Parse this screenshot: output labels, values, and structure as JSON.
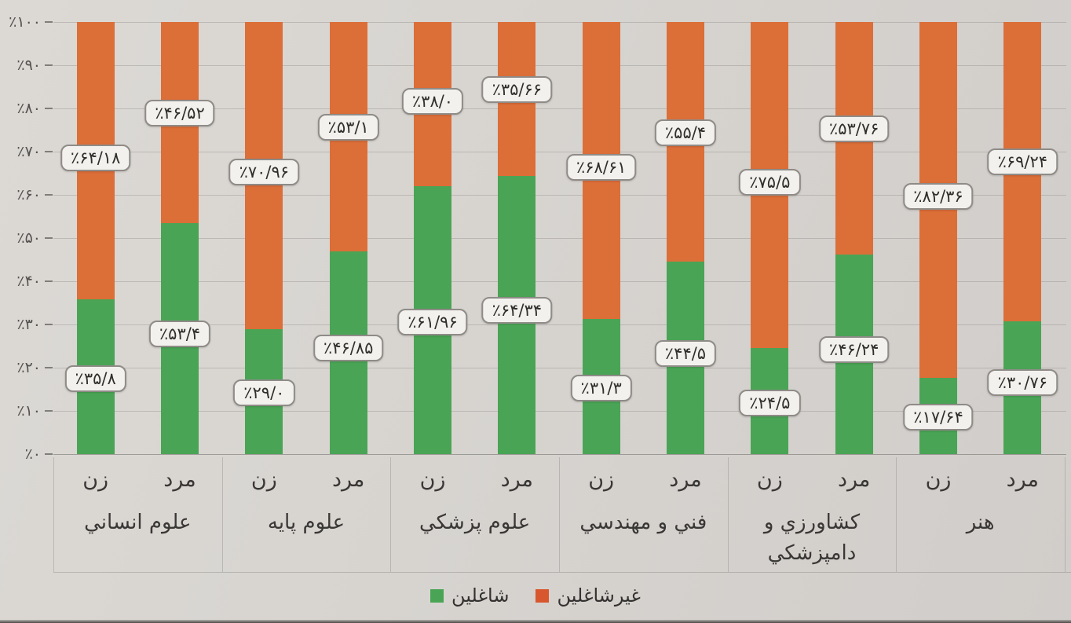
{
  "chart_data": {
    "type": "bar",
    "variant": "stacked-percent",
    "orientation": "vertical",
    "ylim": [
      0,
      100
    ],
    "grid": "horizontal",
    "y_ticks": [
      0,
      10,
      20,
      30,
      40,
      50,
      60,
      70,
      80,
      90,
      100
    ],
    "y_tick_labels": [
      "٪۰",
      "٪۱۰",
      "٪۲۰",
      "٪۳۰",
      "٪۴۰",
      "٪۵۰",
      "٪۶۰",
      "٪۷۰",
      "٪۸۰",
      "٪۹۰",
      "٪۱۰۰"
    ],
    "legend_position": "bottom",
    "legend": [
      {
        "name": "شاغلين",
        "color": "#4aa455"
      },
      {
        "name": "غيرشاغلين",
        "color": "#d8572f"
      }
    ],
    "series_colors": {
      "employed": "#4aa455",
      "unemployed": "#dc6e38"
    },
    "groups": [
      {
        "category": "علوم انساني",
        "display": "علوم انساني",
        "bars": [
          {
            "sub": "زن",
            "employed": 35.8,
            "employed_label": "٪۳۵/۸",
            "unemployed": 64.18,
            "unemployed_label": "٪۶۴/۱۸"
          },
          {
            "sub": "مرد",
            "employed": 53.4,
            "employed_label": "٪۵۳/۴",
            "unemployed": 46.52,
            "unemployed_label": "٪۴۶/۵۲"
          }
        ]
      },
      {
        "category": "علوم پايه",
        "display": "علوم پايه",
        "bars": [
          {
            "sub": "زن",
            "employed": 29.0,
            "employed_label": "٪۲۹/۰",
            "unemployed": 70.96,
            "unemployed_label": "٪۷۰/۹۶"
          },
          {
            "sub": "مرد",
            "employed": 46.85,
            "employed_label": "٪۴۶/۸۵",
            "unemployed": 53.1,
            "unemployed_label": "٪۵۳/۱"
          }
        ]
      },
      {
        "category": "علوم پزشكي",
        "display": "علوم پزشكي",
        "bars": [
          {
            "sub": "زن",
            "employed": 61.96,
            "employed_label": "٪۶۱/۹۶",
            "unemployed": 38.0,
            "unemployed_label": "٪۳۸/۰"
          },
          {
            "sub": "مرد",
            "employed": 64.34,
            "employed_label": "٪۶۴/۳۴",
            "unemployed": 35.66,
            "unemployed_label": "٪۳۵/۶۶"
          }
        ]
      },
      {
        "category": "فني و مهندسي",
        "display": "فني و مهندسي",
        "bars": [
          {
            "sub": "زن",
            "employed": 31.3,
            "employed_label": "٪۳۱/۳",
            "unemployed": 68.61,
            "unemployed_label": "٪۶۸/۶۱"
          },
          {
            "sub": "مرد",
            "employed": 44.5,
            "employed_label": "٪۴۴/۵",
            "unemployed": 55.4,
            "unemployed_label": "٪۵۵/۴"
          }
        ]
      },
      {
        "category": "كشاورزي و دامپزشكي",
        "display": "كشاورزي و\nدامپزشكي",
        "bars": [
          {
            "sub": "زن",
            "employed": 24.5,
            "employed_label": "٪۲۴/۵",
            "unemployed": 75.5,
            "unemployed_label": "٪۷۵/۵"
          },
          {
            "sub": "مرد",
            "employed": 46.24,
            "employed_label": "٪۴۶/۲۴",
            "unemployed": 53.76,
            "unemployed_label": "٪۵۳/۷۶"
          }
        ]
      },
      {
        "category": "هنر",
        "display": "هنر",
        "bars": [
          {
            "sub": "زن",
            "employed": 17.64,
            "employed_label": "٪۱۷/۶۴",
            "unemployed": 82.36,
            "unemployed_label": "٪۸۲/۳۶"
          },
          {
            "sub": "مرد",
            "employed": 30.76,
            "employed_label": "٪۳۰/۷۶",
            "unemployed": 69.24,
            "unemployed_label": "٪۶۹/۲۴"
          }
        ]
      }
    ]
  },
  "colors": {
    "paper": "#d7d4d0",
    "label_box_bg": "#f3f1ee",
    "label_box_border": "#8f8c88",
    "axis_text": "#54524f",
    "gridline": "#8c8985"
  }
}
